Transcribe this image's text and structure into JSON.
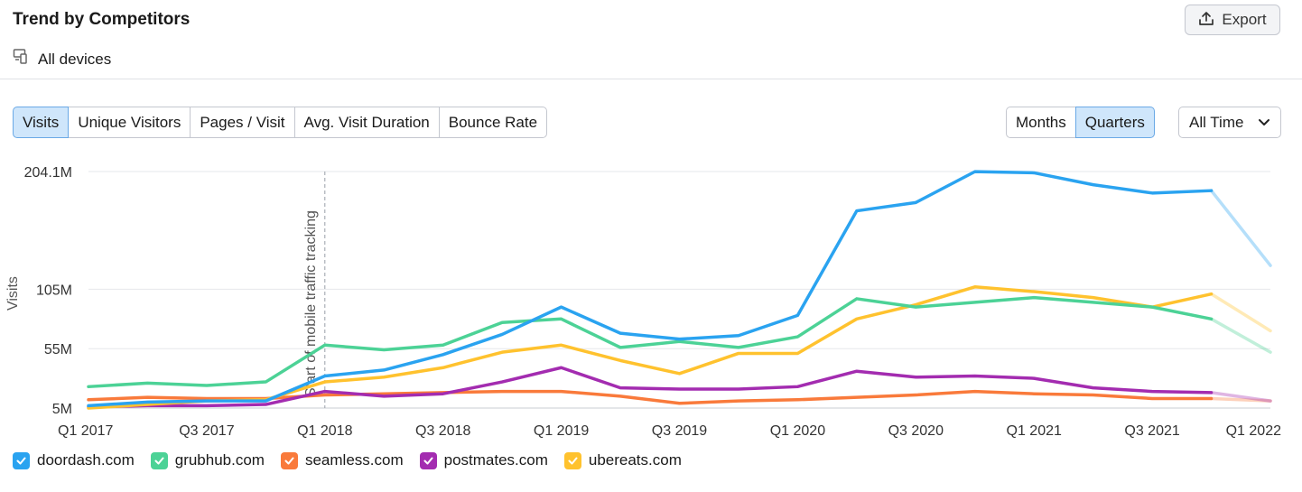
{
  "header": {
    "title": "Trend by Competitors",
    "export_label": "Export",
    "devices_label": "All devices"
  },
  "metric_tabs": [
    {
      "label": "Visits",
      "active": true
    },
    {
      "label": "Unique Visitors",
      "active": false
    },
    {
      "label": "Pages / Visit",
      "active": false
    },
    {
      "label": "Avg. Visit Duration",
      "active": false
    },
    {
      "label": "Bounce Rate",
      "active": false
    }
  ],
  "period_tabs": [
    {
      "label": "Months",
      "active": false
    },
    {
      "label": "Quarters",
      "active": true
    }
  ],
  "range_select": {
    "value": "All Time"
  },
  "colors": {
    "doordash": "#2aa3f0",
    "grubhub": "#4cd296",
    "seamless": "#f97a3b",
    "postmates": "#a32cb0",
    "ubereats": "#ffc22e",
    "accent": "#cfe6fb"
  },
  "chart_data": {
    "type": "line",
    "x": [
      "Q1 2017",
      "Q2 2017",
      "Q3 2017",
      "Q4 2017",
      "Q1 2018",
      "Q2 2018",
      "Q3 2018",
      "Q4 2018",
      "Q1 2019",
      "Q2 2019",
      "Q3 2019",
      "Q4 2019",
      "Q1 2020",
      "Q2 2020",
      "Q3 2020",
      "Q4 2020",
      "Q1 2021",
      "Q2 2021",
      "Q3 2021",
      "Q4 2021",
      "Q1 2022"
    ],
    "xtick_labels": [
      "Q1 2017",
      "Q3 2017",
      "Q1 2018",
      "Q3 2018",
      "Q1 2019",
      "Q3 2019",
      "Q1 2020",
      "Q3 2020",
      "Q1 2021",
      "Q3 2021",
      "Q1 2022"
    ],
    "ylabel": "Visits",
    "yticks": [
      5,
      55,
      105,
      204.1
    ],
    "ytick_labels": [
      "5M",
      "55M",
      "105M",
      "204.1M"
    ],
    "ylim": [
      5,
      204.1
    ],
    "unit": "M",
    "annotation": {
      "x": "Q1 2018",
      "text": "Start of mobile traffic tracking"
    },
    "faded_last_segment": true,
    "grid": true,
    "legend_position": "bottom-left",
    "series": [
      {
        "name": "doordash.com",
        "color": "#2aa3f0",
        "values": [
          7,
          10,
          11,
          11,
          32,
          37,
          50,
          67,
          90,
          68,
          63,
          66,
          83,
          171,
          178,
          204,
          203,
          193,
          186,
          188,
          125
        ]
      },
      {
        "name": "grubhub.com",
        "color": "#4cd296",
        "values": [
          23,
          26,
          24,
          27,
          58,
          54,
          58,
          77,
          80,
          56,
          61,
          56,
          65,
          97,
          90,
          94,
          98,
          94,
          90,
          80,
          52
        ]
      },
      {
        "name": "seamless.com",
        "color": "#f97a3b",
        "values": [
          12,
          14,
          13,
          13,
          16,
          17,
          18,
          19,
          19,
          15,
          9,
          11,
          12,
          14,
          16,
          19,
          17,
          16,
          13,
          13,
          11
        ]
      },
      {
        "name": "postmates.com",
        "color": "#a32cb0",
        "values": [
          6,
          7,
          7,
          8,
          19,
          15,
          17,
          27,
          39,
          22,
          21,
          21,
          23,
          36,
          31,
          32,
          30,
          22,
          19,
          18,
          11
        ]
      },
      {
        "name": "ubereats.com",
        "color": "#ffc22e",
        "values": [
          5,
          8,
          11,
          12,
          27,
          31,
          39,
          52,
          58,
          45,
          34,
          51,
          51,
          80,
          92,
          107,
          103,
          98,
          90,
          101,
          70
        ]
      }
    ]
  }
}
